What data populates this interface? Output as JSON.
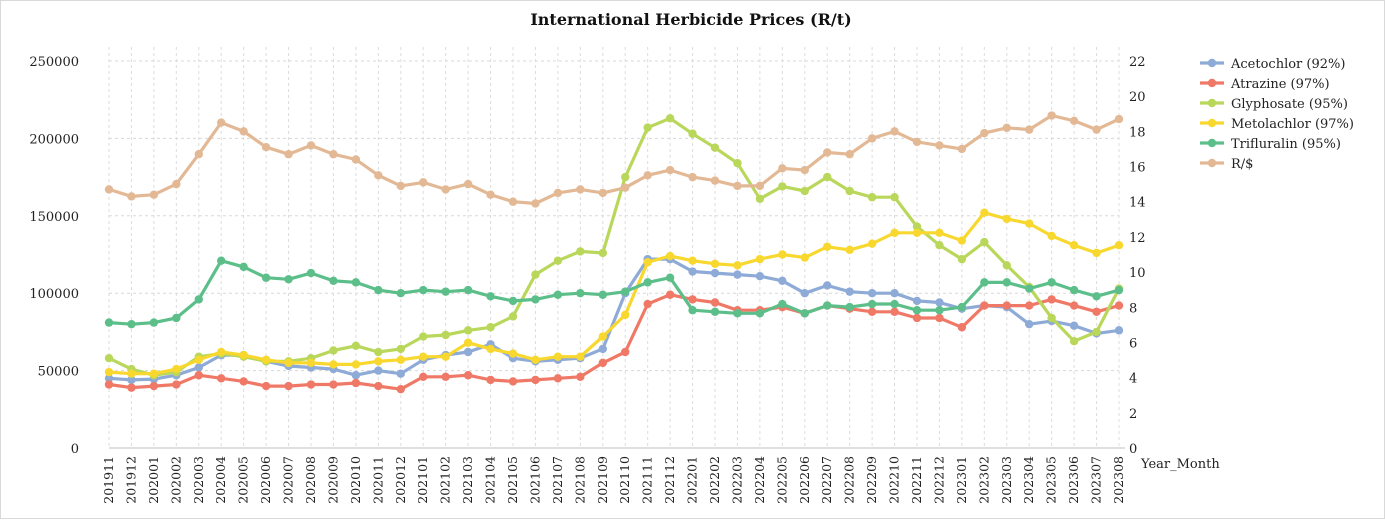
{
  "chart_data": {
    "type": "line",
    "title": "International Herbicide Prices (R/t)",
    "xlabel": "Year_Month",
    "ylabel": "",
    "ylim": [
      0,
      250000
    ],
    "y2lim": [
      0,
      22
    ],
    "yticks": [
      "0",
      "50000",
      "100000",
      "150000",
      "200000",
      "250000"
    ],
    "y2ticks": [
      "0",
      "2",
      "4",
      "6",
      "8",
      "10",
      "12",
      "14",
      "16",
      "18",
      "20",
      "22"
    ],
    "grid": true,
    "legend": "right",
    "categories": [
      "201911",
      "201912",
      "202001",
      "202002",
      "202003",
      "202004",
      "202005",
      "202006",
      "202007",
      "202008",
      "202009",
      "202010",
      "202011",
      "202012",
      "202101",
      "202102",
      "202103",
      "202104",
      "202105",
      "202106",
      "202107",
      "202108",
      "202109",
      "202110",
      "202111",
      "202112",
      "202201",
      "202202",
      "202203",
      "202204",
      "202205",
      "202206",
      "202207",
      "202208",
      "202209",
      "202210",
      "202211",
      "202212",
      "202301",
      "202302",
      "202303",
      "202304",
      "202305",
      "202306",
      "202307",
      "202308"
    ],
    "series": [
      {
        "name": "Acetochlor (92%)",
        "axis": "left",
        "color": "#8eaad6",
        "values": [
          45000,
          44000,
          44500,
          47000,
          52000,
          60000,
          60000,
          56000,
          53000,
          52000,
          51000,
          47000,
          50000,
          48000,
          57000,
          60000,
          62000,
          67000,
          58000,
          56000,
          57000,
          58000,
          64000,
          100000,
          122000,
          122000,
          114000,
          113000,
          112000,
          111000,
          108000,
          100000,
          105000,
          101000,
          100000,
          100000,
          95000,
          94000,
          90000,
          92000,
          91000,
          80000,
          82000,
          79000,
          74000,
          76000
        ]
      },
      {
        "name": "Atrazine (97%)",
        "axis": "left",
        "color": "#f07866",
        "values": [
          41000,
          39000,
          40000,
          41000,
          47000,
          45000,
          43000,
          40000,
          40000,
          41000,
          41000,
          42000,
          40000,
          38000,
          46000,
          46000,
          47000,
          44000,
          43000,
          44000,
          45000,
          46000,
          55000,
          62000,
          93000,
          99000,
          96000,
          94000,
          89000,
          89000,
          91000,
          87000,
          92000,
          90000,
          88000,
          88000,
          84000,
          84000,
          78000,
          92000,
          92000,
          92000,
          96000,
          92000,
          88000,
          92000
        ]
      },
      {
        "name": "Glyphosate (95%)",
        "axis": "left",
        "color": "#b9d75a",
        "values": [
          58000,
          51000,
          47000,
          49000,
          59000,
          61000,
          59000,
          56000,
          56000,
          58000,
          63000,
          66000,
          62000,
          64000,
          72000,
          73000,
          76000,
          78000,
          85000,
          112000,
          121000,
          127000,
          126000,
          175000,
          207000,
          213000,
          203000,
          194000,
          184000,
          161000,
          169000,
          166000,
          175000,
          166000,
          162000,
          162000,
          143000,
          131000,
          122000,
          133000,
          118000,
          104000,
          84000,
          69000,
          75000,
          103000
        ]
      },
      {
        "name": "Metolachlor (97%)",
        "axis": "left",
        "color": "#f8d82e",
        "values": [
          49000,
          48000,
          48000,
          51000,
          57000,
          62000,
          60000,
          57000,
          55000,
          55000,
          54000,
          54000,
          56000,
          57000,
          59000,
          59000,
          68000,
          64000,
          61000,
          57000,
          59000,
          59000,
          72000,
          86000,
          120000,
          124000,
          121000,
          119000,
          118000,
          122000,
          125000,
          123000,
          130000,
          128000,
          132000,
          139000,
          139000,
          139000,
          134000,
          152000,
          148000,
          145000,
          137000,
          131000,
          126000,
          131000
        ]
      },
      {
        "name": "Trifluralin (95%)",
        "axis": "left",
        "color": "#5cbf8a",
        "values": [
          81000,
          80000,
          81000,
          84000,
          96000,
          121000,
          117000,
          110000,
          109000,
          113000,
          108000,
          107000,
          102000,
          100000,
          102000,
          101000,
          102000,
          98000,
          95000,
          96000,
          99000,
          100000,
          99000,
          101000,
          107000,
          110000,
          89000,
          88000,
          87000,
          87000,
          93000,
          87000,
          92000,
          91000,
          93000,
          93000,
          89000,
          89000,
          91000,
          107000,
          107000,
          103000,
          107000,
          102000,
          98000,
          102000
        ]
      },
      {
        "name": "R/$",
        "axis": "right",
        "color": "#e3b895",
        "values": [
          14.7,
          14.3,
          14.4,
          15.0,
          16.7,
          18.5,
          18.0,
          17.1,
          16.7,
          17.2,
          16.7,
          16.4,
          15.5,
          14.9,
          15.1,
          14.7,
          15.0,
          14.4,
          14.0,
          13.9,
          14.5,
          14.7,
          14.5,
          14.8,
          15.5,
          15.8,
          15.4,
          15.2,
          14.9,
          14.9,
          15.9,
          15.8,
          16.8,
          16.7,
          17.6,
          18.0,
          17.4,
          17.2,
          17.0,
          17.9,
          18.2,
          18.1,
          18.9,
          18.6,
          18.1,
          18.7
        ]
      }
    ]
  }
}
